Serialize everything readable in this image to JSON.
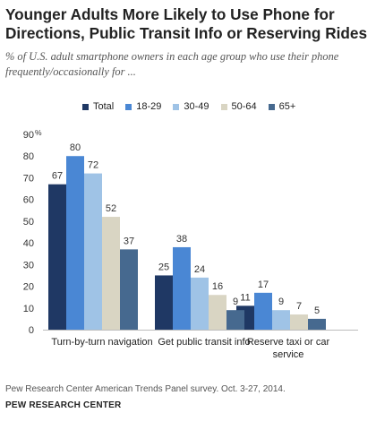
{
  "title": "Younger Adults More Likely to Use Phone for Directions, Public Transit Info or Reserving Rides",
  "subtitle": "% of U.S. adult smartphone owners in each age group who use their phone frequently/occasionally for ...",
  "source": "Pew Research Center American Trends Panel survey. Oct. 3-27, 2014.",
  "org": "PEW RESEARCH CENTER",
  "colors": {
    "Total": "#1f3864",
    "18-29": "#4a87d4",
    "30-49": "#9fc3e6",
    "50-64": "#d9d5c3",
    "65+": "#46698f"
  },
  "chart_data": {
    "type": "bar",
    "title": "Younger Adults More Likely to Use Phone for Directions, Public Transit Info or Reserving Rides",
    "subtitle": "% of U.S. adult smartphone owners in each age group who use their phone frequently/occasionally for ...",
    "categories": [
      "Turn-by-turn navigation",
      "Get public transit info",
      "Reserve taxi or car service"
    ],
    "series": [
      {
        "name": "Total",
        "values": [
          67,
          25,
          11
        ]
      },
      {
        "name": "18-29",
        "values": [
          80,
          38,
          17
        ]
      },
      {
        "name": "30-49",
        "values": [
          72,
          24,
          9
        ]
      },
      {
        "name": "50-64",
        "values": [
          52,
          16,
          7
        ]
      },
      {
        "name": "65+",
        "values": [
          37,
          9,
          5
        ]
      }
    ],
    "data_labels": [
      [
        "67",
        "25",
        "11"
      ],
      [
        "80",
        "38",
        "17"
      ],
      [
        "72",
        "24",
        "9"
      ],
      [
        "52",
        "16",
        "7"
      ],
      [
        "37",
        "9",
        "5"
      ]
    ],
    "category_label_lines": [
      [
        "Turn-by-turn navigation"
      ],
      [
        "Get public transit info"
      ],
      [
        "Reserve taxi or car",
        "service"
      ]
    ],
    "y_ticks": [
      "0",
      "10",
      "20",
      "30",
      "40",
      "50",
      "60",
      "70",
      "80",
      "90"
    ],
    "y_unit": "%",
    "ylim": [
      0,
      90
    ],
    "xlabel": "",
    "ylabel": "",
    "legend": "top",
    "grid": false
  }
}
